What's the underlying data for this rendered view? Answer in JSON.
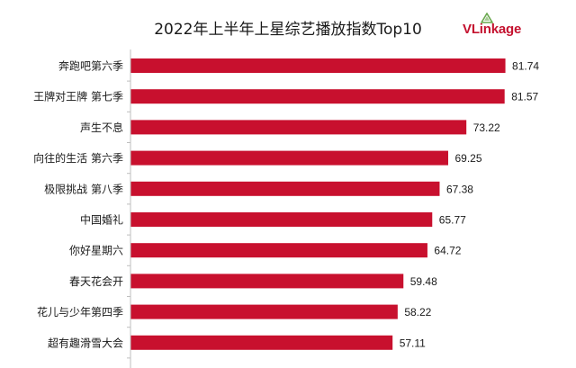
{
  "title": "2022年上半年上星综艺播放指数Top10",
  "logo": {
    "text_v": "V",
    "text_rest": "Linkage",
    "colors": {
      "brand": "#c4122f",
      "leaf": "#6aa84f"
    }
  },
  "colors": {
    "bar": "#c8102e",
    "axis": "#bfbfbf",
    "text": "#1a1a1a"
  },
  "chart_data": {
    "type": "bar",
    "orientation": "horizontal",
    "title": "2022年上半年上星综艺播放指数Top10",
    "categories": [
      "奔跑吧第六季",
      "王牌对王牌 第七季",
      "声生不息",
      "向往的生活 第六季",
      "极限挑战 第八季",
      "中国婚礼",
      "你好星期六",
      "春天花会开",
      "花儿与少年第四季",
      "超有趣滑雪大会"
    ],
    "values": [
      81.74,
      81.57,
      73.22,
      69.25,
      67.38,
      65.77,
      64.72,
      59.48,
      58.22,
      57.11
    ],
    "value_labels": [
      "81.74",
      "81.57",
      "73.22",
      "69.25",
      "67.38",
      "65.77",
      "64.72",
      "59.48",
      "58.22",
      "57.11"
    ],
    "xlim": [
      0,
      85
    ],
    "grid": false,
    "legend": "none"
  }
}
